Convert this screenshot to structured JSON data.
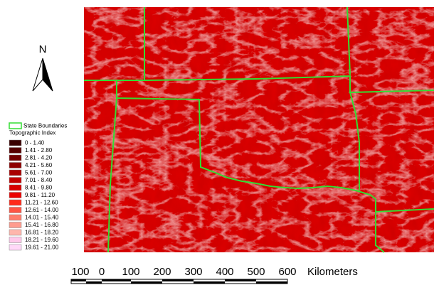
{
  "north_arrow": {
    "label": "N"
  },
  "legend": {
    "boundary_label": "State Boundaries",
    "boundary_color": "#33dd33",
    "title": "Topographic Index",
    "items": [
      {
        "label": "0 - 1.40",
        "color": "#3a0000"
      },
      {
        "label": "1.41 - 2.80",
        "color": "#560000"
      },
      {
        "label": "2.81 - 4.20",
        "color": "#720000"
      },
      {
        "label": "4.21 - 5.60",
        "color": "#8e0000"
      },
      {
        "label": "5.61 - 7.00",
        "color": "#aa0000"
      },
      {
        "label": "7.01 - 8.40",
        "color": "#c40000"
      },
      {
        "label": "8.41 - 9.80",
        "color": "#d80000"
      },
      {
        "label": "9.81 - 11.20",
        "color": "#ec0000"
      },
      {
        "label": "11.21 - 12.60",
        "color": "#ff2a1a"
      },
      {
        "label": "12.61 - 14.00",
        "color": "#ff5444"
      },
      {
        "label": "14.01 - 15.40",
        "color": "#ff7c6c"
      },
      {
        "label": "15.41 - 16.80",
        "color": "#ff9c8e"
      },
      {
        "label": "16.81 - 18.20",
        "color": "#ffb6ac"
      },
      {
        "label": "18.21 - 19.60",
        "color": "#ffc8ea"
      },
      {
        "label": "19.61 - 21.00",
        "color": "#ffd8f8"
      }
    ]
  },
  "scale_bar": {
    "labels": [
      "100",
      "0",
      "100",
      "200",
      "300",
      "400",
      "500",
      "600"
    ],
    "unit": "Kilometers"
  }
}
